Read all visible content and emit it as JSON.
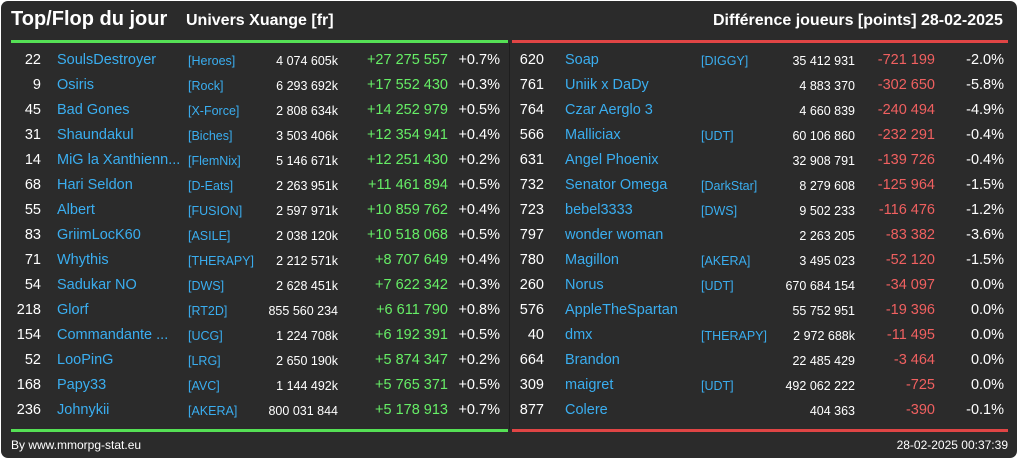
{
  "header": {
    "title": "Top/Flop du jour",
    "universe": "Univers Xuange [fr]",
    "metric": "Différence joueurs [points]",
    "date": "28-02-2025"
  },
  "colors": {
    "background": "#2b2b2b",
    "top_accent": "#55e055",
    "flop_accent": "#e04545",
    "link": "#3aaef0",
    "gain": "#66ee66",
    "loss": "#f06060"
  },
  "top": [
    {
      "rank": "22",
      "name": "SoulsDestroyer",
      "guild": "[Heroes]",
      "total": "4 074 605k",
      "diff": "+27 275 557",
      "pct": "+0.7%"
    },
    {
      "rank": "9",
      "name": "Osiris",
      "guild": "[Rock]",
      "total": "6 293 692k",
      "diff": "+17 552 430",
      "pct": "+0.3%"
    },
    {
      "rank": "45",
      "name": "Bad Gones",
      "guild": "[X-Force]",
      "total": "2 808 634k",
      "diff": "+14 252 979",
      "pct": "+0.5%"
    },
    {
      "rank": "31",
      "name": "Shaundakul",
      "guild": "[Biches]",
      "total": "3 503 406k",
      "diff": "+12 354 941",
      "pct": "+0.4%"
    },
    {
      "rank": "14",
      "name": "MiG la Xanthienn...",
      "guild": "[FlemNix]",
      "total": "5 146 671k",
      "diff": "+12 251 430",
      "pct": "+0.2%"
    },
    {
      "rank": "68",
      "name": "Hari Seldon",
      "guild": "[D-Eats]",
      "total": "2 263 951k",
      "diff": "+11 461 894",
      "pct": "+0.5%"
    },
    {
      "rank": "55",
      "name": "Albert",
      "guild": "[FUSION]",
      "total": "2 597 971k",
      "diff": "+10 859 762",
      "pct": "+0.4%"
    },
    {
      "rank": "83",
      "name": "GriimLocK60",
      "guild": "[ASILE]",
      "total": "2 038 120k",
      "diff": "+10 518 068",
      "pct": "+0.5%"
    },
    {
      "rank": "71",
      "name": "Whythis",
      "guild": "[THERAPY]",
      "total": "2 212 571k",
      "diff": "+8 707 649",
      "pct": "+0.4%"
    },
    {
      "rank": "54",
      "name": "Sadukar NO",
      "guild": "[DWS]",
      "total": "2 628 451k",
      "diff": "+7 622 342",
      "pct": "+0.3%"
    },
    {
      "rank": "218",
      "name": "Glorf",
      "guild": "[RT2D]",
      "total": "855 560 234",
      "diff": "+6 611 790",
      "pct": "+0.8%"
    },
    {
      "rank": "154",
      "name": "Commandante ...",
      "guild": "[UCG]",
      "total": "1 224 708k",
      "diff": "+6 192 391",
      "pct": "+0.5%"
    },
    {
      "rank": "52",
      "name": "LooPinG",
      "guild": "[LRG]",
      "total": "2 650 190k",
      "diff": "+5 874 347",
      "pct": "+0.2%"
    },
    {
      "rank": "168",
      "name": "Papy33",
      "guild": "[AVC]",
      "total": "1 144 492k",
      "diff": "+5 765 371",
      "pct": "+0.5%"
    },
    {
      "rank": "236",
      "name": "Johnykii",
      "guild": "[AKERA]",
      "total": "800 031 844",
      "diff": "+5 178 913",
      "pct": "+0.7%"
    }
  ],
  "flop": [
    {
      "rank": "620",
      "name": "Soap",
      "guild": "[DIGGY]",
      "total": "35 412 931",
      "diff": "-721 199",
      "pct": "-2.0%"
    },
    {
      "rank": "761",
      "name": "Uniik x DaDy",
      "guild": "",
      "total": "4 883 370",
      "diff": "-302 650",
      "pct": "-5.8%"
    },
    {
      "rank": "764",
      "name": "Czar Aerglo 3",
      "guild": "",
      "total": "4 660 839",
      "diff": "-240 494",
      "pct": "-4.9%"
    },
    {
      "rank": "566",
      "name": "Malliciax",
      "guild": "[UDT]",
      "total": "60 106 860",
      "diff": "-232 291",
      "pct": "-0.4%"
    },
    {
      "rank": "631",
      "name": "Angel Phoenix",
      "guild": "",
      "total": "32 908 791",
      "diff": "-139 726",
      "pct": "-0.4%"
    },
    {
      "rank": "732",
      "name": "Senator Omega",
      "guild": "[DarkStar]",
      "total": "8 279 608",
      "diff": "-125 964",
      "pct": "-1.5%"
    },
    {
      "rank": "723",
      "name": "bebel3333",
      "guild": "[DWS]",
      "total": "9 502 233",
      "diff": "-116 476",
      "pct": "-1.2%"
    },
    {
      "rank": "797",
      "name": "wonder woman",
      "guild": "",
      "total": "2 263 205",
      "diff": "-83 382",
      "pct": "-3.6%"
    },
    {
      "rank": "780",
      "name": "Magillon",
      "guild": "[AKERA]",
      "total": "3 495 023",
      "diff": "-52 120",
      "pct": "-1.5%"
    },
    {
      "rank": "260",
      "name": "Norus",
      "guild": "[UDT]",
      "total": "670 684 154",
      "diff": "-34 097",
      "pct": "0.0%"
    },
    {
      "rank": "576",
      "name": "AppleTheSpartan",
      "guild": "",
      "total": "55 752 951",
      "diff": "-19 396",
      "pct": "0.0%"
    },
    {
      "rank": "40",
      "name": "dmx",
      "guild": "[THERAPY]",
      "total": "2 972 688k",
      "diff": "-11 495",
      "pct": "0.0%"
    },
    {
      "rank": "664",
      "name": "Brandon",
      "guild": "",
      "total": "22 485 429",
      "diff": "-3 464",
      "pct": "0.0%"
    },
    {
      "rank": "309",
      "name": "maigret",
      "guild": "[UDT]",
      "total": "492 062 222",
      "diff": "-725",
      "pct": "0.0%"
    },
    {
      "rank": "877",
      "name": "Colere",
      "guild": "",
      "total": "404 363",
      "diff": "-390",
      "pct": "-0.1%"
    }
  ],
  "footer": {
    "source": "By www.mmorpg-stat.eu",
    "timestamp": "28-02-2025 00:37:39"
  }
}
